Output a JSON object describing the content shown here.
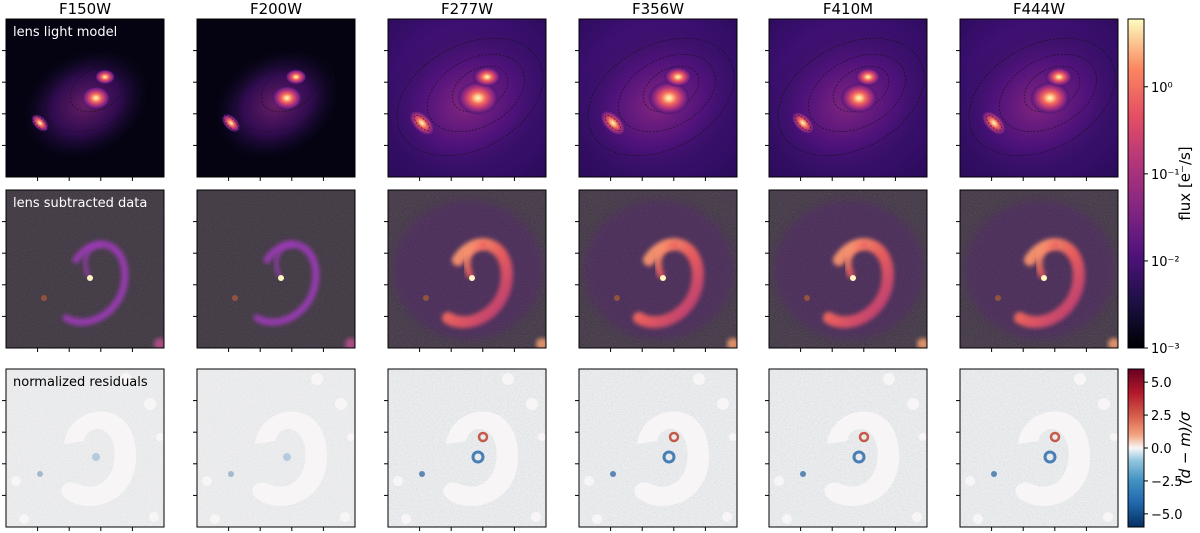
{
  "filters": [
    "F150W",
    "F200W",
    "F277W",
    "F356W",
    "F410M",
    "F444W"
  ],
  "rows": [
    {
      "label": "lens light model"
    },
    {
      "label": "lens subtracted data"
    },
    {
      "label": "normalized residuals"
    }
  ],
  "colorbar_flux": {
    "label": "flux [e⁻/s]",
    "ticks": [
      "10⁰",
      "10⁻¹",
      "10⁻²",
      "10⁻³"
    ],
    "tick_values": [
      1,
      0.1,
      0.01,
      0.001
    ],
    "range": [
      0.001,
      6
    ],
    "scale": "log",
    "colormap": "magma"
  },
  "colorbar_residual": {
    "label": "(d − m)/σ",
    "ticks": [
      "5.0",
      "2.5",
      "0.0",
      "−2.5",
      "−5.0"
    ],
    "tick_values": [
      5.0,
      2.5,
      0.0,
      -2.5,
      -5.0
    ],
    "range": [
      -6,
      6
    ],
    "colormap": "RdBu_r"
  },
  "brightness": [
    0.55,
    0.6,
    1.0,
    1.0,
    0.85,
    0.95
  ]
}
